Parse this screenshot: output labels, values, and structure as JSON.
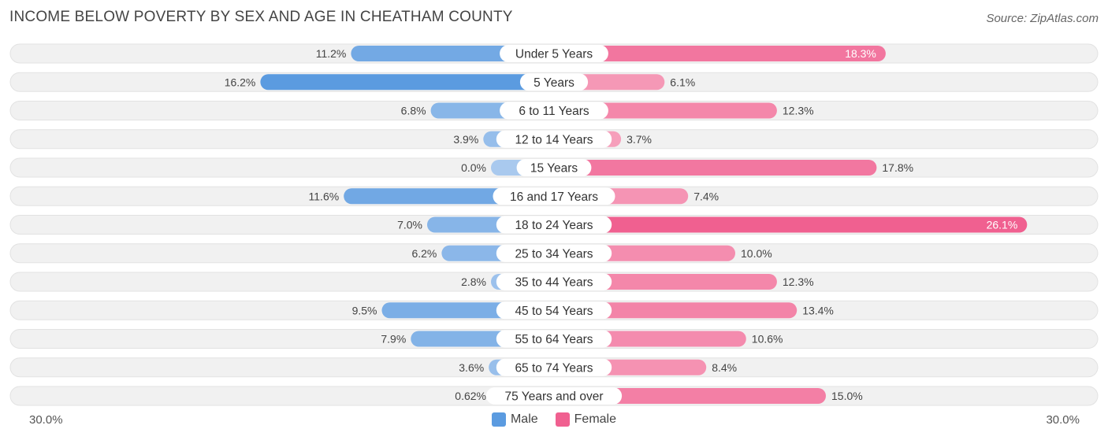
{
  "title": "INCOME BELOW POVERTY BY SEX AND AGE IN CHEATHAM COUNTY",
  "source": "Source: ZipAtlas.com",
  "colors": {
    "male": "#5b9be0",
    "male_light": "#a9c9ee",
    "female": "#f06090",
    "female_light": "#f7a9c2",
    "track": "#f1f1f1",
    "track_border": "#e2e2e2"
  },
  "axis": {
    "left_label": "30.0%",
    "right_label": "30.0%"
  },
  "legend": {
    "male": "Male",
    "female": "Female"
  },
  "chart_data": {
    "type": "bar",
    "orientation": "horizontal-diverging",
    "title": "INCOME BELOW POVERTY BY SEX AND AGE IN CHEATHAM COUNTY",
    "xlim": [
      -30,
      30
    ],
    "categories": [
      "Under 5 Years",
      "5 Years",
      "6 to 11 Years",
      "12 to 14 Years",
      "15 Years",
      "16 and 17 Years",
      "18 to 24 Years",
      "25 to 34 Years",
      "35 to 44 Years",
      "45 to 54 Years",
      "55 to 64 Years",
      "65 to 74 Years",
      "75 Years and over"
    ],
    "series": [
      {
        "name": "Male",
        "values": [
          11.2,
          16.2,
          6.8,
          3.9,
          0.0,
          11.6,
          7.0,
          6.2,
          2.8,
          9.5,
          7.9,
          3.6,
          0.62
        ],
        "labels": [
          "11.2%",
          "16.2%",
          "6.8%",
          "3.9%",
          "0.0%",
          "11.6%",
          "7.0%",
          "6.2%",
          "2.8%",
          "9.5%",
          "7.9%",
          "3.6%",
          "0.62%"
        ]
      },
      {
        "name": "Female",
        "values": [
          18.3,
          6.1,
          12.3,
          3.7,
          17.8,
          7.4,
          26.1,
          10.0,
          12.3,
          13.4,
          10.6,
          8.4,
          15.0
        ],
        "labels": [
          "18.3%",
          "6.1%",
          "12.3%",
          "3.7%",
          "17.8%",
          "7.4%",
          "26.1%",
          "10.0%",
          "12.3%",
          "13.4%",
          "10.6%",
          "8.4%",
          "15.0%"
        ]
      }
    ]
  }
}
